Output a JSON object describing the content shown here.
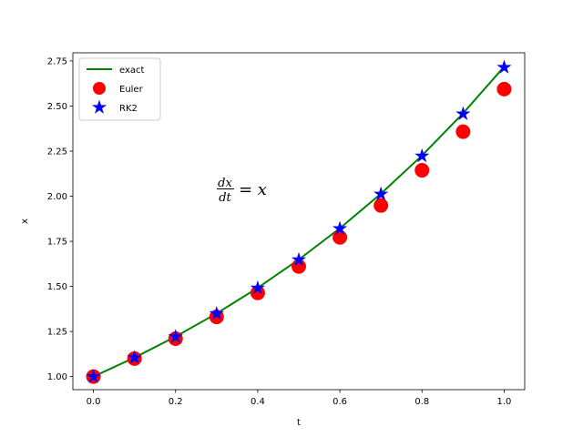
{
  "chart_data": {
    "type": "line",
    "title": "",
    "xlabel": "t",
    "ylabel": "x",
    "xlim": [
      -0.05,
      1.05
    ],
    "ylim": [
      0.9275,
      2.795
    ],
    "xticks": [
      0.0,
      0.2,
      0.4,
      0.6,
      0.8,
      1.0
    ],
    "xtick_labels": [
      "0.0",
      "0.2",
      "0.4",
      "0.6",
      "0.8",
      "1.0"
    ],
    "yticks": [
      1.0,
      1.25,
      1.5,
      1.75,
      2.0,
      2.25,
      2.5,
      2.75
    ],
    "ytick_labels": [
      "1.00",
      "1.25",
      "1.50",
      "1.75",
      "2.00",
      "2.25",
      "2.50",
      "2.75"
    ],
    "grid": false,
    "legend_position": "top-left",
    "annotation": {
      "numerator": "dx",
      "denominator": "dt",
      "rhs": "= x",
      "at": [
        0.3,
        2.0
      ]
    },
    "x": [
      0.0,
      0.1,
      0.2,
      0.3,
      0.4,
      0.5,
      0.6,
      0.7,
      0.8,
      0.9,
      1.0
    ],
    "series": [
      {
        "name": "exact",
        "style": "line",
        "color": "#008000",
        "values": [
          1.0,
          1.1052,
          1.2214,
          1.3499,
          1.4918,
          1.6487,
          1.8221,
          2.0138,
          2.2255,
          2.4596,
          2.7183
        ]
      },
      {
        "name": "Euler",
        "style": "circle",
        "color": "#ff0000",
        "values": [
          1.0,
          1.1,
          1.21,
          1.331,
          1.4641,
          1.6105,
          1.7716,
          1.9487,
          2.1436,
          2.3579,
          2.5937
        ]
      },
      {
        "name": "RK2",
        "style": "star",
        "color": "#0000ff",
        "values": [
          1.0,
          1.105,
          1.221,
          1.3492,
          1.4909,
          1.6474,
          1.8204,
          2.0116,
          2.2228,
          2.4562,
          2.7141
        ]
      }
    ]
  }
}
